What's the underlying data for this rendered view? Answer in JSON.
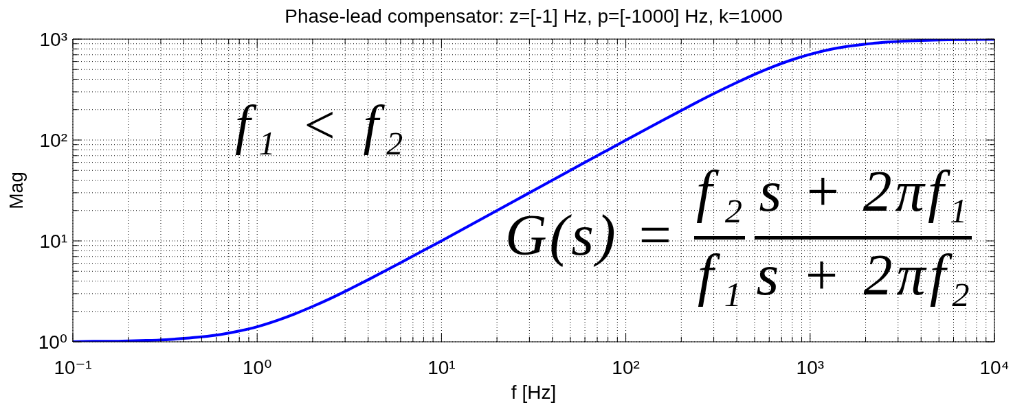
{
  "chart_data": {
    "type": "line",
    "title": "Phase-lead compensator: z=[-1] Hz, p=[-1000] Hz, k=1000",
    "xlabel": "f [Hz]",
    "ylabel": "Mag",
    "annotations": [
      "f₁ < f₂",
      "G(s) =",
      "f₂",
      "f₁",
      "s + 2πf₁",
      "s + 2πf₂"
    ],
    "x": [
      0.1,
      0.13,
      0.16,
      0.2,
      0.25,
      0.32,
      0.4,
      0.5,
      0.63,
      0.8,
      1,
      1.3,
      1.6,
      2,
      2.5,
      3.2,
      4,
      5,
      6.3,
      8,
      10,
      13,
      16,
      20,
      25,
      32,
      40,
      50,
      63,
      80,
      100,
      130,
      160,
      200,
      250,
      320,
      400,
      500,
      630,
      800,
      1000,
      1300,
      1600,
      2000,
      2500,
      3200,
      4000,
      5000,
      6300,
      8000,
      10000
    ],
    "values": [
      1.0,
      1.01,
      1.01,
      1.02,
      1.03,
      1.05,
      1.08,
      1.12,
      1.18,
      1.28,
      1.41,
      1.64,
      1.89,
      2.24,
      2.69,
      3.35,
      4.12,
      5.1,
      6.38,
      8.06,
      10.0,
      13.0,
      16.0,
      20.0,
      25.0,
      32.0,
      40.0,
      50.0,
      63.0,
      79.8,
      99.5,
      129,
      158,
      196,
      243,
      305,
      371,
      447,
      533,
      625,
      707,
      793,
      848,
      894,
      928,
      954,
      970,
      981,
      988,
      992,
      995
    ],
    "color": "#0000ff",
    "log": "xy",
    "grid": true,
    "xlim": [
      0.1,
      10000
    ],
    "ylim": [
      1,
      1000
    ],
    "xticks": [
      {
        "value": 0.1,
        "label": "10⁻¹"
      },
      {
        "value": 0.2,
        "label": null
      },
      {
        "value": 0.3,
        "label": null
      },
      {
        "value": 0.4,
        "label": null
      },
      {
        "value": 0.5,
        "label": null
      },
      {
        "value": 0.6,
        "label": null
      },
      {
        "value": 0.7,
        "label": null
      },
      {
        "value": 0.8,
        "label": null
      },
      {
        "value": 0.9,
        "label": null
      },
      {
        "value": 1,
        "label": "10⁰"
      },
      {
        "value": 2,
        "label": null
      },
      {
        "value": 3,
        "label": null
      },
      {
        "value": 4,
        "label": null
      },
      {
        "value": 5,
        "label": null
      },
      {
        "value": 6,
        "label": null
      },
      {
        "value": 7,
        "label": null
      },
      {
        "value": 8,
        "label": null
      },
      {
        "value": 9,
        "label": null
      },
      {
        "value": 10,
        "label": "10¹"
      },
      {
        "value": 20,
        "label": null
      },
      {
        "value": 30,
        "label": null
      },
      {
        "value": 40,
        "label": null
      },
      {
        "value": 50,
        "label": null
      },
      {
        "value": 60,
        "label": null
      },
      {
        "value": 70,
        "label": null
      },
      {
        "value": 80,
        "label": null
      },
      {
        "value": 90,
        "label": null
      },
      {
        "value": 100,
        "label": "10²"
      },
      {
        "value": 200,
        "label": null
      },
      {
        "value": 300,
        "label": null
      },
      {
        "value": 400,
        "label": null
      },
      {
        "value": 500,
        "label": null
      },
      {
        "value": 600,
        "label": null
      },
      {
        "value": 700,
        "label": null
      },
      {
        "value": 800,
        "label": null
      },
      {
        "value": 900,
        "label": null
      },
      {
        "value": 1000,
        "label": "10³"
      },
      {
        "value": 2000,
        "label": null
      },
      {
        "value": 3000,
        "label": null
      },
      {
        "value": 4000,
        "label": null
      },
      {
        "value": 5000,
        "label": null
      },
      {
        "value": 6000,
        "label": null
      },
      {
        "value": 7000,
        "label": null
      },
      {
        "value": 8000,
        "label": null
      },
      {
        "value": 9000,
        "label": null
      },
      {
        "value": 10000,
        "label": "10⁴"
      }
    ],
    "yticks": [
      {
        "value": 1,
        "label": "10⁰"
      },
      {
        "value": 2,
        "label": null
      },
      {
        "value": 3,
        "label": null
      },
      {
        "value": 4,
        "label": null
      },
      {
        "value": 5,
        "label": null
      },
      {
        "value": 6,
        "label": null
      },
      {
        "value": 7,
        "label": null
      },
      {
        "value": 8,
        "label": null
      },
      {
        "value": 9,
        "label": null
      },
      {
        "value": 10,
        "label": "10¹"
      },
      {
        "value": 20,
        "label": null
      },
      {
        "value": 30,
        "label": null
      },
      {
        "value": 40,
        "label": null
      },
      {
        "value": 50,
        "label": null
      },
      {
        "value": 60,
        "label": null
      },
      {
        "value": 70,
        "label": null
      },
      {
        "value": 80,
        "label": null
      },
      {
        "value": 90,
        "label": null
      },
      {
        "value": 100,
        "label": "10²"
      },
      {
        "value": 200,
        "label": null
      },
      {
        "value": 300,
        "label": null
      },
      {
        "value": 400,
        "label": null
      },
      {
        "value": 500,
        "label": null
      },
      {
        "value": 600,
        "label": null
      },
      {
        "value": 700,
        "label": null
      },
      {
        "value": 800,
        "label": null
      },
      {
        "value": 900,
        "label": null
      },
      {
        "value": 1000,
        "label": "10³"
      }
    ]
  }
}
